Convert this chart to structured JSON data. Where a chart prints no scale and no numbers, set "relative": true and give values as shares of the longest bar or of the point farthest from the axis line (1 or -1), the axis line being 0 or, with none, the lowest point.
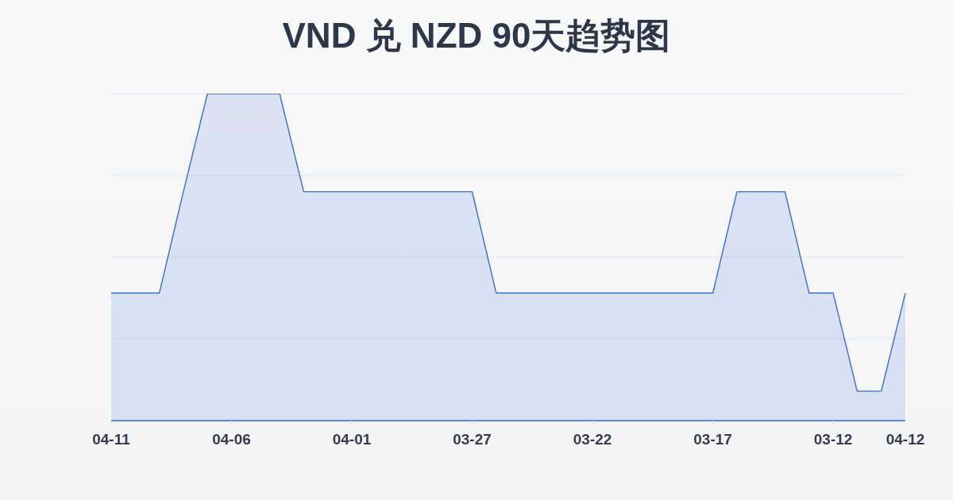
{
  "chart_data": {
    "type": "area",
    "title": "VND 兑 NZD 90天趋势图",
    "categories": [
      "04-11",
      null,
      null,
      null,
      null,
      "04-06",
      null,
      null,
      null,
      null,
      "04-01",
      null,
      null,
      null,
      null,
      "03-27",
      null,
      null,
      null,
      null,
      "03-22",
      null,
      null,
      null,
      null,
      "03-17",
      null,
      null,
      null,
      null,
      "03-12",
      null,
      null,
      "04-12"
    ],
    "values": [
      0.39,
      0.39,
      0.39,
      0.7,
      1,
      1,
      1,
      1,
      0.7,
      0.7,
      0.7,
      0.7,
      0.7,
      0.7,
      0.7,
      0.7,
      0.39,
      0.39,
      0.39,
      0.39,
      0.39,
      0.39,
      0.39,
      0.39,
      0.39,
      0.39,
      0.7,
      0.7,
      0.7,
      0.39,
      0.39,
      0.09,
      0.09,
      0.39
    ],
    "color": "#3b6cd0",
    "relative": true,
    "grid": "y"
  }
}
